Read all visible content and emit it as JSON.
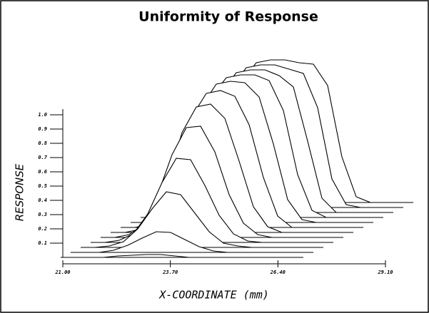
{
  "chart_data": {
    "type": "waterfall",
    "title": "Uniformity of Response",
    "x_label": "X-COORDINATE (mm)",
    "y_label": "RESPONSE",
    "color": "#000000",
    "xlim": [
      21,
      29.1
    ],
    "xticks": [
      {
        "value": 21,
        "label": "21.00"
      },
      {
        "value": 23.7,
        "label": "23.70"
      },
      {
        "value": 26.4,
        "label": "26.40"
      },
      {
        "value": 29.1,
        "label": "29.10"
      }
    ],
    "ylim": [
      0,
      1
    ],
    "yticks": [
      0.1,
      0.2,
      0.3,
      0.4,
      0.5,
      0.6,
      0.7,
      0.8,
      0.9,
      {
        "value": 1,
        "label": "1.0"
      }
    ],
    "x": [
      21,
      21.5,
      22,
      22.5,
      23,
      23.5,
      24,
      24.5,
      25,
      25.5,
      26,
      26.5,
      27,
      27.5,
      28,
      28.5,
      29,
      29.5
    ],
    "series": [
      {
        "values": [
          0,
          0,
          0,
          0,
          0.01,
          0.015,
          0.02,
          0.02,
          0.01,
          0,
          0,
          0,
          0,
          0,
          0,
          0,
          0,
          0
        ]
      },
      {
        "values": [
          0,
          0,
          0,
          0.015,
          0.05,
          0.1,
          0.145,
          0.14,
          0.09,
          0.04,
          0.01,
          0,
          0,
          0,
          0,
          0,
          0,
          0
        ]
      },
      {
        "values": [
          0,
          0,
          0.01,
          0.04,
          0.13,
          0.27,
          0.39,
          0.37,
          0.24,
          0.11,
          0.03,
          0.01,
          0,
          0,
          0,
          0,
          0,
          0
        ]
      },
      {
        "values": [
          0,
          0,
          0.015,
          0.06,
          0.2,
          0.42,
          0.59,
          0.58,
          0.4,
          0.19,
          0.06,
          0.01,
          0,
          0,
          0,
          0,
          0,
          0
        ]
      },
      {
        "values": [
          0,
          0,
          0.02,
          0.09,
          0.3,
          0.58,
          0.77,
          0.78,
          0.6,
          0.3,
          0.1,
          0.02,
          0,
          0,
          0,
          0,
          0,
          0
        ]
      },
      {
        "values": [
          0,
          0,
          0.02,
          0.1,
          0.36,
          0.7,
          0.88,
          0.9,
          0.8,
          0.5,
          0.18,
          0.04,
          0,
          0,
          0,
          0,
          0,
          0
        ]
      },
      {
        "values": [
          0,
          0,
          0.02,
          0.1,
          0.4,
          0.78,
          0.94,
          0.96,
          0.92,
          0.72,
          0.35,
          0.08,
          0,
          0,
          0,
          0,
          0,
          0
        ]
      },
      {
        "values": [
          0,
          0,
          0.02,
          0.1,
          0.42,
          0.82,
          0.97,
          0.99,
          0.98,
          0.88,
          0.55,
          0.16,
          0.02,
          0,
          0,
          0,
          0,
          0
        ]
      },
      {
        "values": [
          0,
          0,
          0.02,
          0.1,
          0.44,
          0.85,
          0.98,
          1,
          1,
          0.96,
          0.75,
          0.3,
          0.05,
          0,
          0,
          0,
          0,
          0
        ]
      },
      {
        "values": [
          0,
          0,
          0.02,
          0.1,
          0.44,
          0.85,
          0.98,
          1,
          1,
          0.96,
          0.88,
          0.5,
          0.1,
          0,
          0,
          0,
          0,
          0
        ]
      },
      {
        "values": [
          0,
          0,
          0.02,
          0.1,
          0.44,
          0.85,
          0.98,
          1,
          1,
          0.97,
          0.94,
          0.7,
          0.2,
          0.02,
          0,
          0,
          0,
          0
        ]
      },
      {
        "values": [
          0,
          0,
          0.02,
          0.1,
          0.44,
          0.85,
          0.98,
          1,
          1,
          0.98,
          0.97,
          0.82,
          0.32,
          0.04,
          0,
          0,
          0,
          0
        ]
      }
    ]
  }
}
